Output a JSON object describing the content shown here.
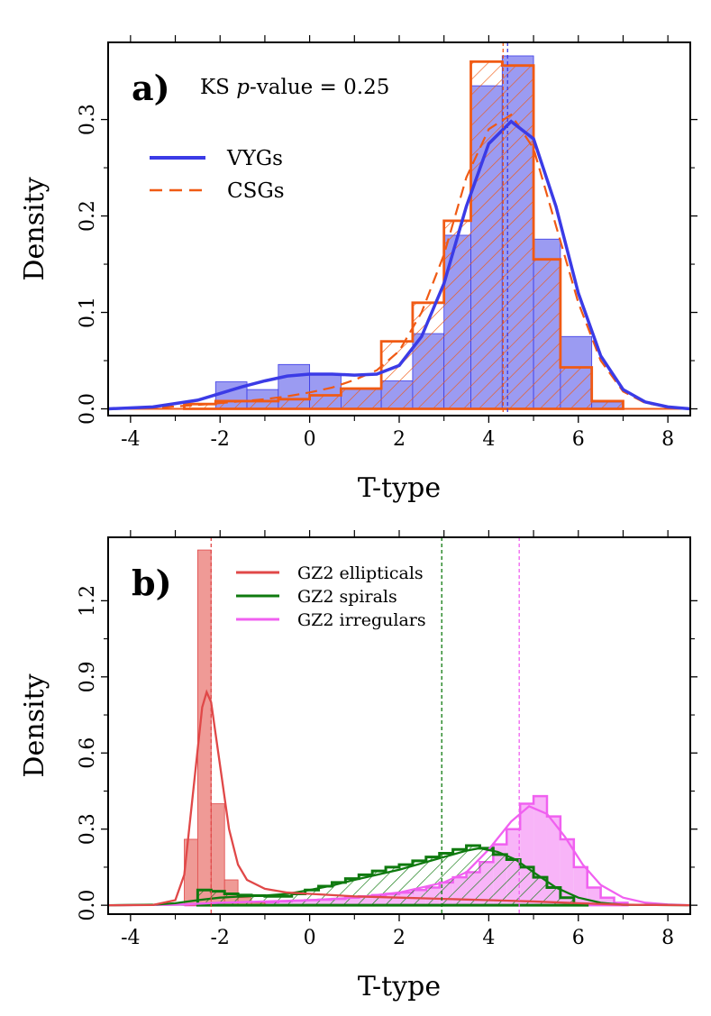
{
  "chart_data": [
    {
      "type": "histogram",
      "panel": "a)",
      "annotation": {
        "prefix": "KS ",
        "italic": "p",
        "suffix": "-value = 0.25"
      },
      "xlabel": "T-type",
      "ylabel": "Density",
      "xlim": [
        -4.5,
        8.5
      ],
      "ylim": [
        -0.007,
        0.38
      ],
      "xticks": [
        -4,
        -2,
        0,
        2,
        4,
        6,
        8
      ],
      "yticks": [
        0.0,
        0.1,
        0.2,
        0.3
      ],
      "ytick_labels": [
        "0.0",
        "0.1",
        "0.2",
        "0.3"
      ],
      "colors": {
        "vygs": "#3b3be6",
        "vygs_fill": "#9b9bf2",
        "csgs": "#f05a14"
      },
      "legend": [
        {
          "label": "VYGs",
          "style": "solid"
        },
        {
          "label": "CSGs",
          "style": "dashed"
        }
      ],
      "bin_edges": [
        -2.8,
        -2.1,
        -1.4,
        -0.7,
        0.0,
        0.7,
        1.6,
        2.3,
        3.0,
        3.6,
        4.3,
        5.0,
        5.6,
        6.3,
        7.0
      ],
      "series": [
        {
          "name": "VYGs histogram",
          "values": [
            0.0,
            0.028,
            0.02,
            0.046,
            0.036,
            0.02,
            0.029,
            0.078,
            0.18,
            0.335,
            0.366,
            0.176,
            0.075,
            0.007
          ]
        },
        {
          "name": "CSGs histogram",
          "values": [
            0.005,
            0.008,
            0.008,
            0.01,
            0.014,
            0.021,
            0.07,
            0.11,
            0.195,
            0.36,
            0.356,
            0.155,
            0.043,
            0.008
          ]
        },
        {
          "name": "VYGs density",
          "x": [
            -4.5,
            -3.5,
            -2.5,
            -2,
            -1.5,
            -1,
            -0.5,
            0,
            0.5,
            1,
            1.5,
            2,
            2.5,
            3,
            3.5,
            4,
            4.5,
            5,
            5.5,
            6,
            6.5,
            7,
            7.5,
            8,
            8.5
          ],
          "y": [
            0.0,
            0.002,
            0.009,
            0.016,
            0.023,
            0.029,
            0.034,
            0.036,
            0.036,
            0.035,
            0.036,
            0.045,
            0.075,
            0.13,
            0.21,
            0.275,
            0.298,
            0.28,
            0.21,
            0.12,
            0.055,
            0.02,
            0.007,
            0.002,
            0.0
          ]
        },
        {
          "name": "CSGs density",
          "x": [
            -4.5,
            -3.5,
            -2.5,
            -2,
            -1.5,
            -1,
            -0.5,
            0,
            0.5,
            1,
            1.5,
            2,
            2.5,
            3,
            3.5,
            4,
            4.5,
            5,
            5.5,
            6,
            6.5,
            7,
            7.5,
            8,
            8.5
          ],
          "y": [
            0.0,
            0.001,
            0.004,
            0.006,
            0.008,
            0.01,
            0.013,
            0.017,
            0.022,
            0.03,
            0.04,
            0.06,
            0.1,
            0.16,
            0.24,
            0.29,
            0.305,
            0.27,
            0.19,
            0.11,
            0.05,
            0.018,
            0.006,
            0.002,
            0.0
          ]
        }
      ],
      "vlines": [
        {
          "name": "VYGs mean",
          "x": 4.42
        },
        {
          "name": "CSGs mean",
          "x": 4.32
        }
      ]
    },
    {
      "type": "histogram",
      "panel": "b)",
      "xlabel": "T-type",
      "ylabel": "Density",
      "xlim": [
        -4.5,
        8.5
      ],
      "ylim": [
        -0.035,
        1.45
      ],
      "xticks": [
        -4,
        -2,
        0,
        2,
        4,
        6,
        8
      ],
      "yticks": [
        0.0,
        0.3,
        0.6,
        0.9,
        1.2
      ],
      "ytick_labels": [
        "0.0",
        "0.3",
        "0.6",
        "0.9",
        "1.2"
      ],
      "colors": {
        "ellipticals": "#e04848",
        "ellipticals_fill": "#ef9a96",
        "spirals": "#0f7a0f",
        "irregulars": "#f060f0",
        "irregulars_fill": "#f8b4f8"
      },
      "legend": [
        {
          "label": "GZ2 ellipticals"
        },
        {
          "label": "GZ2 spirals"
        },
        {
          "label": "GZ2 irregulars"
        }
      ],
      "series": [
        {
          "name": "GZ2 ellipticals histogram",
          "bin_edges": [
            -2.8,
            -2.5,
            -2.2,
            -1.9,
            -1.6,
            -1.3,
            -1.0
          ],
          "values": [
            0.26,
            1.4,
            0.4,
            0.1,
            0.03,
            0.01
          ]
        },
        {
          "name": "GZ2 spirals histogram",
          "bin_edges": [
            -2.5,
            -2.2,
            -1.9,
            -1.6,
            -1.3,
            -1.0,
            -0.7,
            -0.4,
            -0.1,
            0.2,
            0.5,
            0.8,
            1.1,
            1.4,
            1.7,
            2.0,
            2.3,
            2.6,
            2.9,
            3.2,
            3.5,
            3.8,
            4.1,
            4.4,
            4.7,
            5.0,
            5.3,
            5.6,
            5.9,
            6.2
          ],
          "values": [
            0.06,
            0.055,
            0.045,
            0.04,
            0.038,
            0.035,
            0.035,
            0.045,
            0.06,
            0.075,
            0.09,
            0.105,
            0.12,
            0.135,
            0.15,
            0.16,
            0.175,
            0.19,
            0.205,
            0.22,
            0.235,
            0.225,
            0.2,
            0.18,
            0.15,
            0.11,
            0.07,
            0.03,
            0.005
          ]
        },
        {
          "name": "GZ2 irregulars histogram",
          "bin_edges": [
            -2.8,
            -2.5,
            -2.2,
            -1.9,
            -1.6,
            -1.3,
            -1.0,
            -0.7,
            -0.4,
            -0.1,
            0.2,
            0.5,
            0.8,
            1.1,
            1.4,
            1.7,
            2.0,
            2.3,
            2.6,
            2.9,
            3.2,
            3.5,
            3.8,
            4.1,
            4.4,
            4.7,
            5.0,
            5.3,
            5.6,
            5.9,
            6.2,
            6.5,
            6.8,
            7.1
          ],
          "values": [
            0.0,
            0.005,
            0.008,
            0.008,
            0.01,
            0.01,
            0.012,
            0.015,
            0.018,
            0.02,
            0.022,
            0.025,
            0.03,
            0.035,
            0.04,
            0.045,
            0.05,
            0.06,
            0.07,
            0.09,
            0.11,
            0.13,
            0.17,
            0.24,
            0.3,
            0.4,
            0.43,
            0.35,
            0.26,
            0.15,
            0.07,
            0.03,
            0.01
          ]
        },
        {
          "name": "GZ2 ellipticals density",
          "x": [
            -4.5,
            -3.5,
            -3.0,
            -2.8,
            -2.6,
            -2.4,
            -2.3,
            -2.2,
            -2.0,
            -1.8,
            -1.6,
            -1.4,
            -1.0,
            -0.5,
            0,
            1,
            2,
            3,
            4,
            5,
            6,
            7,
            8.5
          ],
          "y": [
            0.0,
            0.001,
            0.02,
            0.12,
            0.45,
            0.78,
            0.84,
            0.8,
            0.55,
            0.3,
            0.16,
            0.1,
            0.065,
            0.05,
            0.045,
            0.035,
            0.03,
            0.025,
            0.02,
            0.015,
            0.008,
            0.002,
            0.0
          ]
        },
        {
          "name": "GZ2 spirals density",
          "x": [
            -4.5,
            -3.5,
            -3.0,
            -2.5,
            -2.0,
            -1.5,
            -1.0,
            -0.5,
            0,
            0.5,
            1,
            1.5,
            2,
            2.5,
            3,
            3.5,
            3.8,
            4.2,
            4.6,
            5.0,
            5.5,
            6.0,
            6.5,
            7.0,
            8.5
          ],
          "y": [
            0.0,
            0.002,
            0.008,
            0.02,
            0.03,
            0.035,
            0.038,
            0.045,
            0.06,
            0.078,
            0.1,
            0.12,
            0.14,
            0.165,
            0.19,
            0.215,
            0.225,
            0.21,
            0.18,
            0.13,
            0.07,
            0.03,
            0.01,
            0.002,
            0.0
          ]
        },
        {
          "name": "GZ2 irregulars density",
          "x": [
            -4.5,
            -3.0,
            -2.0,
            -1.0,
            0,
            1,
            2,
            3,
            3.5,
            4.0,
            4.5,
            4.9,
            5.3,
            5.7,
            6.1,
            6.5,
            7.0,
            7.5,
            8.0,
            8.5
          ],
          "y": [
            0.0,
            0.002,
            0.01,
            0.015,
            0.02,
            0.03,
            0.05,
            0.09,
            0.13,
            0.22,
            0.33,
            0.39,
            0.36,
            0.27,
            0.16,
            0.08,
            0.03,
            0.01,
            0.003,
            0.0
          ]
        }
      ],
      "vlines": [
        {
          "name": "GZ2 ellipticals mean",
          "x": -2.2
        },
        {
          "name": "GZ2 spirals mean",
          "x": 2.95
        },
        {
          "name": "GZ2 irregulars mean",
          "x": 4.68
        }
      ]
    }
  ]
}
